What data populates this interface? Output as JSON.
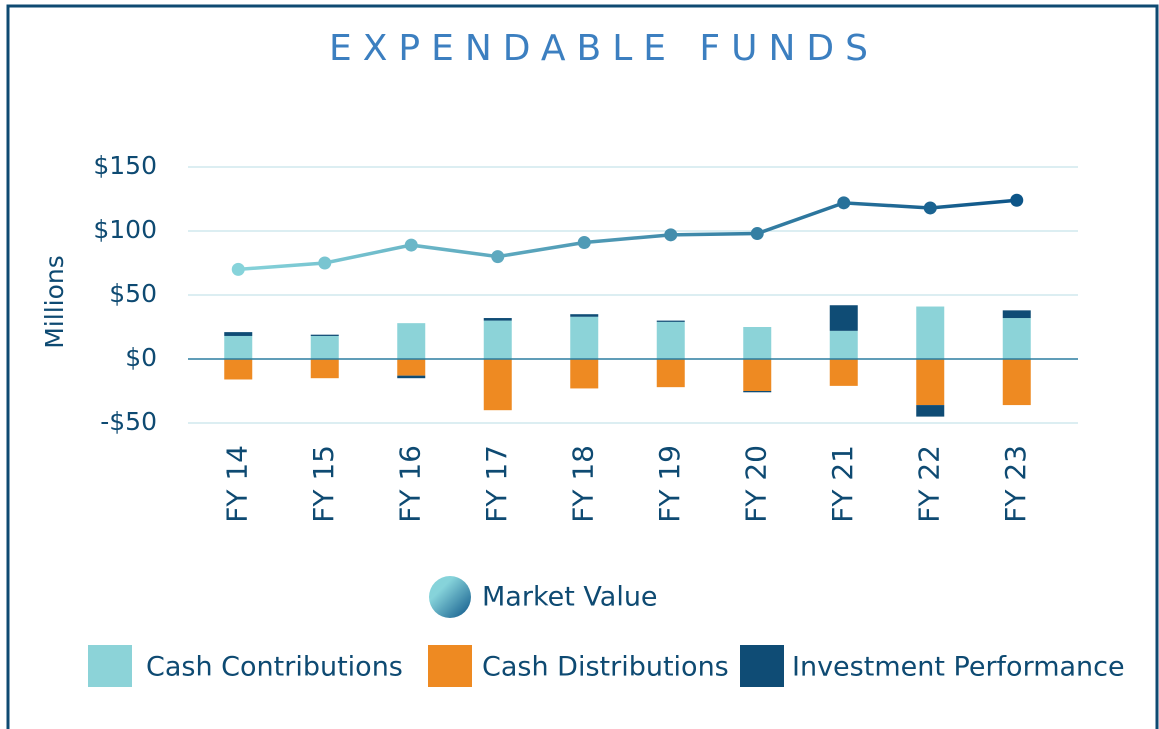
{
  "chart_data": {
    "type": "bar",
    "title": "EXPENDABLE FUNDS",
    "y_label": "Millions",
    "categories": [
      "FY 14",
      "FY 15",
      "FY 16",
      "FY 17",
      "FY 18",
      "FY 19",
      "FY 20",
      "FY 21",
      "FY 22",
      "FY 23"
    ],
    "series": [
      {
        "name": "Market Value",
        "type": "line",
        "color": [
          "#86d3da",
          "#0d5588"
        ],
        "values": [
          70,
          75,
          89,
          80,
          91,
          97,
          98,
          122,
          118,
          124
        ]
      },
      {
        "name": "Cash Contributions",
        "type": "bar",
        "color": "#8cd3d8",
        "values": [
          18,
          18,
          28,
          30,
          33,
          29,
          25,
          22,
          41,
          32
        ]
      },
      {
        "name": "Cash Distributions",
        "type": "bar",
        "color": "#ee8a22",
        "values": [
          -16,
          -15,
          -13,
          -40,
          -23,
          -22,
          -25,
          -21,
          -36,
          -36
        ]
      },
      {
        "name": "Investment Performance",
        "type": "bar",
        "color": "#0f4c75",
        "values": [
          3,
          1,
          -2,
          2,
          2,
          1,
          -1,
          20,
          -9,
          6
        ]
      }
    ],
    "ylim": [
      -50,
      150
    ],
    "yticks": [
      {
        "value": 150,
        "label": "$150"
      },
      {
        "value": 100,
        "label": "$100"
      },
      {
        "value": 50,
        "label": "$50"
      },
      {
        "value": 0,
        "label": "$0"
      },
      {
        "value": -50,
        "label": "-$50"
      }
    ],
    "grid": true
  }
}
